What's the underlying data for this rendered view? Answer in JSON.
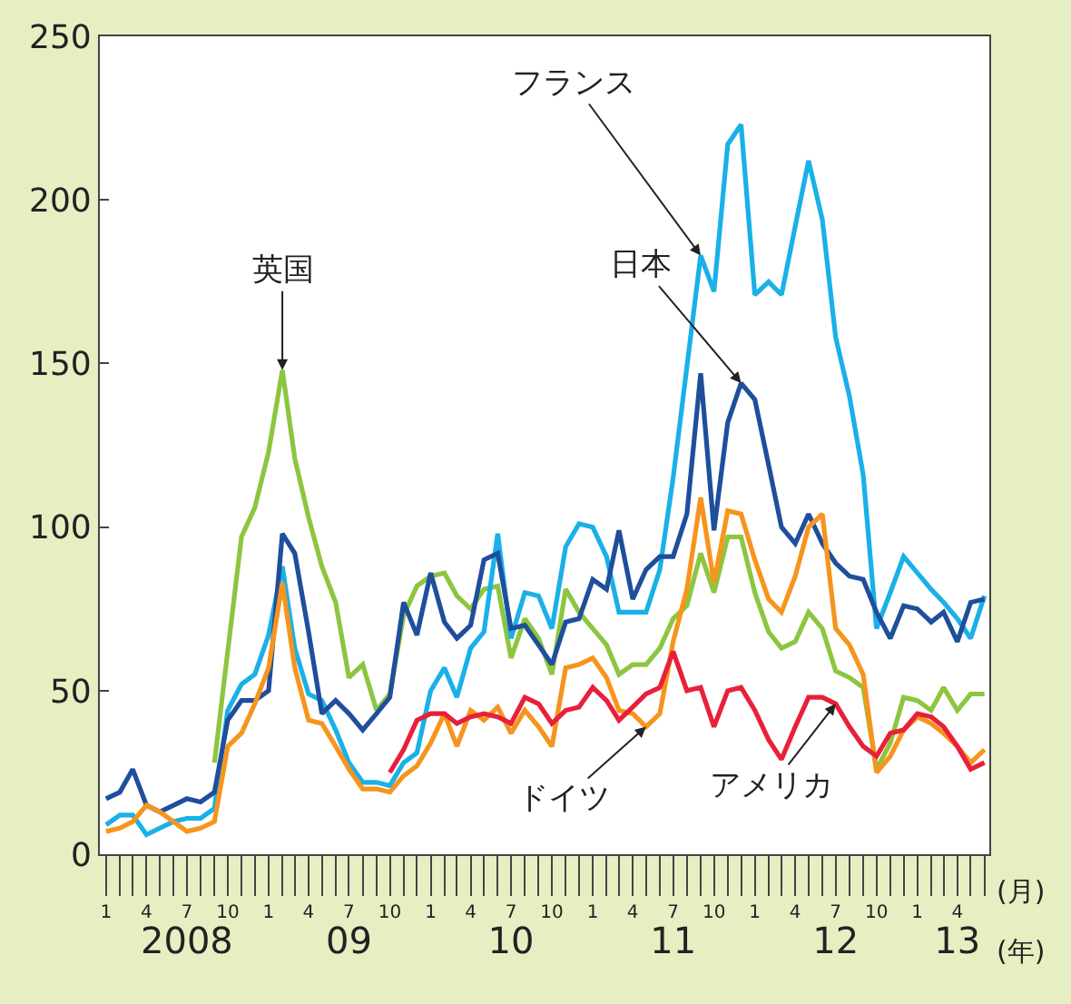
{
  "chart_data": {
    "type": "line",
    "xlabel": "(月)",
    "x2label": "(年)",
    "x": [
      "2008-01",
      "2008-02",
      "2008-03",
      "2008-04",
      "2008-05",
      "2008-06",
      "2008-07",
      "2008-08",
      "2008-09",
      "2008-10",
      "2008-11",
      "2008-12",
      "2009-01",
      "2009-02",
      "2009-03",
      "2009-04",
      "2009-05",
      "2009-06",
      "2009-07",
      "2009-08",
      "2009-09",
      "2009-10",
      "2009-11",
      "2009-12",
      "2010-01",
      "2010-02",
      "2010-03",
      "2010-04",
      "2010-05",
      "2010-06",
      "2010-07",
      "2010-08",
      "2010-09",
      "2010-10",
      "2010-11",
      "2010-12",
      "2011-01",
      "2011-02",
      "2011-03",
      "2011-04",
      "2011-05",
      "2011-06",
      "2011-07",
      "2011-08",
      "2011-09",
      "2011-10",
      "2011-11",
      "2011-12",
      "2012-01",
      "2012-02",
      "2012-03",
      "2012-04",
      "2012-05",
      "2012-06",
      "2012-07",
      "2012-08",
      "2012-09",
      "2012-10",
      "2012-11",
      "2012-12",
      "2013-01",
      "2013-02",
      "2013-03",
      "2013-04",
      "2013-05",
      "2013-06"
    ],
    "series": [
      {
        "name": "英国",
        "color": "#8cc63f",
        "values": [
          null,
          null,
          null,
          null,
          null,
          null,
          null,
          null,
          28,
          62,
          97,
          106,
          123,
          148,
          121,
          103,
          88,
          77,
          54,
          58,
          44,
          49,
          73,
          82,
          85,
          86,
          79,
          75,
          81,
          82,
          60,
          72,
          66,
          55,
          81,
          74,
          69,
          64,
          55,
          58,
          58,
          63,
          72,
          76,
          92,
          80,
          97,
          97,
          80,
          68,
          63,
          65,
          74,
          69,
          56,
          54,
          51,
          26,
          34,
          48,
          47,
          44,
          51,
          44,
          49,
          49
        ]
      },
      {
        "name": "フランス",
        "color": "#1ab0e8",
        "values": [
          9,
          12,
          12,
          6,
          8,
          10,
          11,
          11,
          14,
          44,
          52,
          55,
          67,
          88,
          63,
          49,
          47,
          38,
          28,
          22,
          22,
          21,
          28,
          31,
          50,
          57,
          48,
          63,
          68,
          98,
          66,
          80,
          79,
          69,
          94,
          101,
          100,
          91,
          74,
          74,
          74,
          87,
          115,
          149,
          183,
          172,
          217,
          223,
          171,
          175,
          171,
          192,
          212,
          194,
          158,
          140,
          116,
          69,
          80,
          91,
          86,
          81,
          77,
          72,
          66,
          79
        ]
      },
      {
        "name": "日本",
        "color": "#1f4e9c",
        "values": [
          17,
          19,
          26,
          15,
          13,
          15,
          17,
          16,
          19,
          41,
          47,
          47,
          50,
          98,
          92,
          68,
          43,
          47,
          43,
          38,
          43,
          48,
          77,
          67,
          86,
          71,
          66,
          70,
          90,
          92,
          69,
          70,
          64,
          58,
          71,
          72,
          84,
          81,
          99,
          78,
          87,
          91,
          91,
          104,
          147,
          99,
          132,
          144,
          139,
          119,
          100,
          95,
          104,
          95,
          89,
          85,
          84,
          74,
          66,
          76,
          75,
          71,
          74,
          65,
          77,
          78
        ]
      },
      {
        "name": "ドイツ",
        "color": "#f7941d",
        "values": [
          7,
          8,
          10,
          15,
          13,
          10,
          7,
          8,
          10,
          33,
          37,
          46,
          57,
          83,
          57,
          41,
          40,
          33,
          26,
          20,
          20,
          19,
          24,
          27,
          34,
          43,
          33,
          44,
          41,
          45,
          37,
          44,
          39,
          33,
          57,
          58,
          60,
          54,
          44,
          43,
          39,
          43,
          65,
          81,
          109,
          83,
          105,
          104,
          90,
          78,
          74,
          85,
          100,
          104,
          69,
          64,
          55,
          25,
          30,
          38,
          42,
          40,
          37,
          33,
          28,
          32
        ]
      },
      {
        "name": "アメリカ",
        "color": "#e8203a",
        "values": [
          null,
          null,
          null,
          null,
          null,
          null,
          null,
          null,
          null,
          null,
          null,
          null,
          null,
          null,
          null,
          null,
          null,
          null,
          null,
          null,
          null,
          25,
          32,
          41,
          43,
          43,
          40,
          42,
          43,
          42,
          40,
          48,
          46,
          40,
          44,
          45,
          51,
          47,
          41,
          45,
          49,
          51,
          62,
          50,
          51,
          39,
          50,
          51,
          44,
          35,
          29,
          39,
          48,
          48,
          46,
          39,
          33,
          30,
          37,
          38,
          43,
          42,
          39,
          33,
          26,
          28
        ]
      }
    ],
    "ylim": [
      0,
      250
    ],
    "yticks": [
      0,
      50,
      100,
      150,
      200,
      250
    ],
    "xlim": [
      "2007-12-18",
      "2013-06-12"
    ],
    "xticks": [
      {
        "value": "2008-01",
        "label": "1"
      },
      {
        "value": "2008-04",
        "label": "4"
      },
      {
        "value": "2008-07",
        "label": "7"
      },
      {
        "value": "2008-10",
        "label": "10"
      },
      {
        "value": "2009-01",
        "label": "1"
      },
      {
        "value": "2009-04",
        "label": "4"
      },
      {
        "value": "2009-07",
        "label": "7"
      },
      {
        "value": "2009-10",
        "label": "10"
      },
      {
        "value": "2010-01",
        "label": "1"
      },
      {
        "value": "2010-04",
        "label": "4"
      },
      {
        "value": "2010-07",
        "label": "7"
      },
      {
        "value": "2010-10",
        "label": "10"
      },
      {
        "value": "2011-01",
        "label": "1"
      },
      {
        "value": "2011-04",
        "label": "4"
      },
      {
        "value": "2011-07",
        "label": "7"
      },
      {
        "value": "2011-10",
        "label": "10"
      },
      {
        "value": "2012-01",
        "label": "1"
      },
      {
        "value": "2012-04",
        "label": "4"
      },
      {
        "value": "2012-07",
        "label": "7"
      },
      {
        "value": "2012-10",
        "label": "10"
      },
      {
        "value": "2013-01",
        "label": "1"
      },
      {
        "value": "2013-04",
        "label": "4"
      }
    ],
    "x2lim": [
      "2007-12-18",
      "2013-06-12"
    ],
    "x2ticks": [
      {
        "value": "2008-07-01",
        "label": "2008"
      },
      {
        "value": "2009-07-01",
        "label": "09"
      },
      {
        "value": "2010-07-01",
        "label": "10"
      },
      {
        "value": "2011-07-01",
        "label": "11"
      },
      {
        "value": "2012-07-01",
        "label": "12"
      },
      {
        "value": "2013-04-01",
        "label": "13"
      }
    ],
    "legend": false,
    "marker": "none",
    "line_style": "solid"
  }
}
